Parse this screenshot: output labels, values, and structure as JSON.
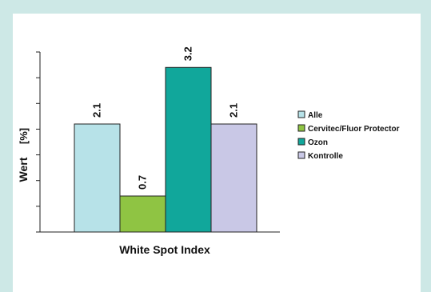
{
  "chart_data": {
    "type": "bar",
    "categories": [
      "White Spot Index"
    ],
    "xlabel": "White Spot Index",
    "ylabel": "Wert",
    "ylabel_unit": "[%]",
    "ylim": [
      0,
      3.5
    ],
    "grid": false,
    "legend_position": "right",
    "series": [
      {
        "name": "Alle",
        "values": [
          2.1
        ],
        "label": "2.1",
        "color": "#b7e2e8"
      },
      {
        "name": "Cervitec/Fluor Protector",
        "values": [
          0.7
        ],
        "label": "0.7",
        "color": "#8fc443"
      },
      {
        "name": "Ozon",
        "values": [
          3.2
        ],
        "label": "3.2",
        "color": "#11a79b"
      },
      {
        "name": "Kontrolle",
        "values": [
          2.1
        ],
        "label": "2.1",
        "color": "#c9c8e6"
      }
    ]
  }
}
